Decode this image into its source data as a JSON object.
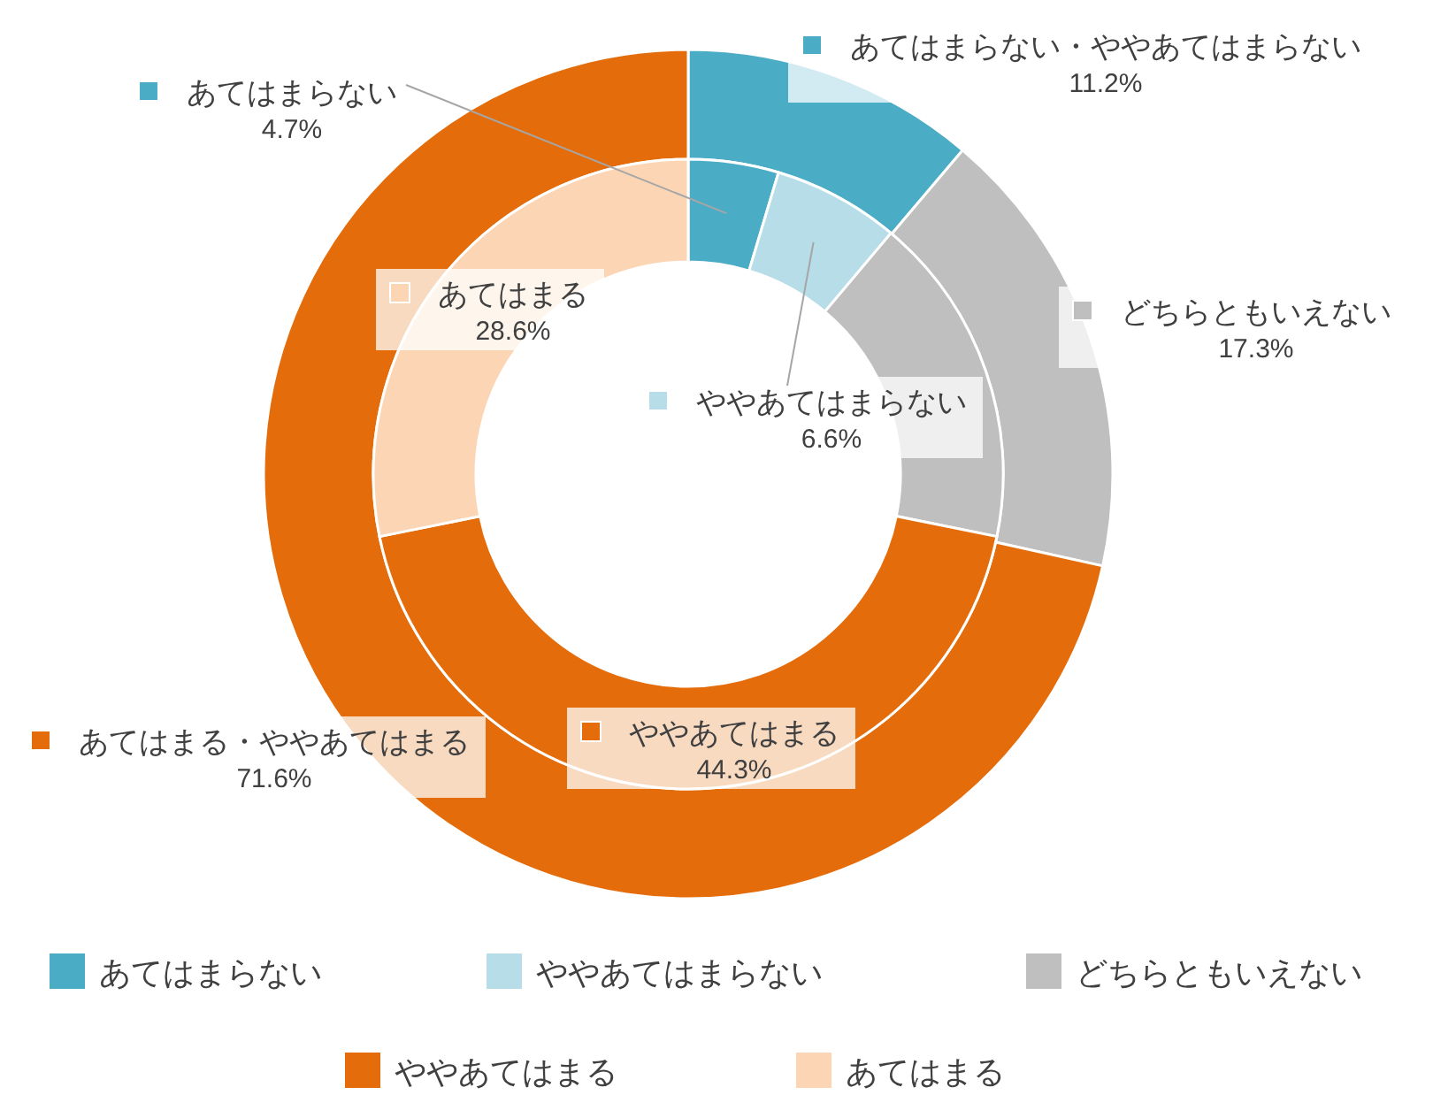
{
  "chart_data": [
    {
      "type": "donut",
      "categories": [
        "あてはまらない・ややあてはまらない",
        "どちらともいえない",
        "あてはまる・ややあてはまる"
      ],
      "values": [
        11.2,
        17.3,
        71.6
      ],
      "colors": [
        "#4bacc6",
        "#bfbfbf",
        "#e46c0a"
      ],
      "value_labels": [
        "11.2%",
        "17.3%",
        "71.6%"
      ],
      "legend": "top"
    },
    {
      "type": "donut",
      "categories": [
        "あてはまらない",
        "ややあてはまらない",
        "どちらともいえない",
        "ややあてはまる",
        "あてはまる"
      ],
      "values": [
        4.7,
        6.6,
        17.3,
        44.3,
        28.6
      ],
      "colors": [
        "#4bacc6",
        "#b7dde8",
        "#bfbfbf",
        "#e46c0a",
        "#fcd5b5"
      ],
      "value_labels": [
        "4.7%",
        "6.6%",
        null,
        "44.3%",
        "28.6%"
      ],
      "legend": "bottom"
    }
  ]
}
